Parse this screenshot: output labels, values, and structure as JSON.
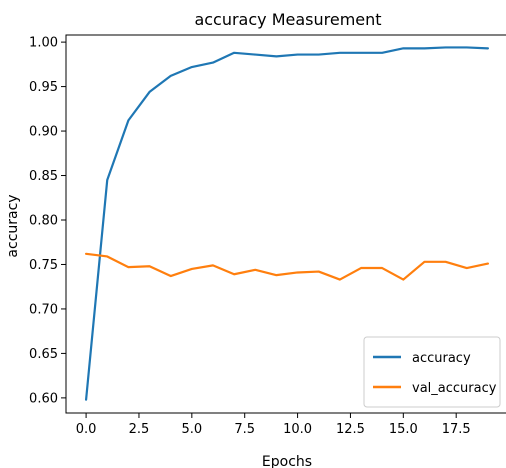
{
  "chart_data": {
    "type": "line",
    "title": "accuracy Measurement",
    "xlabel": "Epochs",
    "ylabel": "accuracy",
    "xlim": [
      -0.95,
      19.95
    ],
    "ylim": [
      0.583,
      1.008
    ],
    "xticks": [
      0.0,
      2.5,
      5.0,
      7.5,
      10.0,
      12.5,
      15.0,
      17.5
    ],
    "xtick_labels": [
      "0.0",
      "2.5",
      "5.0",
      "7.5",
      "10.0",
      "12.5",
      "15.0",
      "17.5"
    ],
    "yticks": [
      0.6,
      0.65,
      0.7,
      0.75,
      0.8,
      0.85,
      0.9,
      0.95,
      1.0
    ],
    "ytick_labels": [
      "0.60",
      "0.65",
      "0.70",
      "0.75",
      "0.80",
      "0.85",
      "0.90",
      "0.95",
      "1.00"
    ],
    "grid": false,
    "legend_position": "lower-right",
    "x": [
      0,
      1,
      2,
      3,
      4,
      5,
      6,
      7,
      8,
      9,
      10,
      11,
      12,
      13,
      14,
      15,
      16,
      17,
      18,
      19
    ],
    "series": [
      {
        "name": "accuracy",
        "color": "#1f77b4",
        "values": [
          0.598,
          0.845,
          0.912,
          0.944,
          0.962,
          0.972,
          0.977,
          0.988,
          0.986,
          0.984,
          0.986,
          0.986,
          0.988,
          0.988,
          0.988,
          0.993,
          0.993,
          0.994,
          0.994,
          0.993
        ]
      },
      {
        "name": "val_accuracy",
        "color": "#ff7f0e",
        "values": [
          0.762,
          0.759,
          0.747,
          0.748,
          0.737,
          0.745,
          0.749,
          0.739,
          0.744,
          0.738,
          0.741,
          0.742,
          0.733,
          0.746,
          0.746,
          0.733,
          0.753,
          0.753,
          0.746,
          0.751
        ]
      }
    ]
  }
}
